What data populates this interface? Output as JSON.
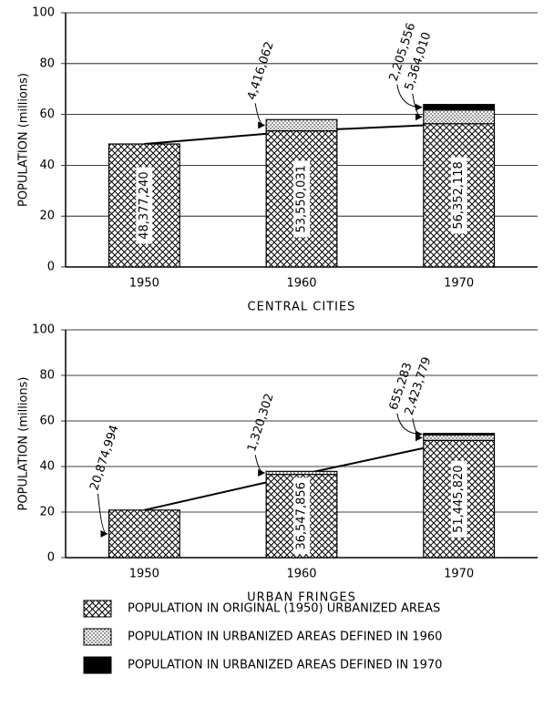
{
  "chart_data": [
    {
      "type": "bar",
      "stacked": true,
      "xlabel": "CENTRAL CITIES",
      "ylabel": "POPULATION (millions)",
      "categories": [
        "1950",
        "1960",
        "1970"
      ],
      "series": [
        {
          "name": "POPULATION IN ORIGINAL (1950) URBANIZED AREAS",
          "color": "#000000",
          "pattern": "crosshatch",
          "values": [
            48.37724,
            53.550031,
            56.352118
          ],
          "value_labels": [
            "48,377,240",
            "53,550,031",
            "56,352,118"
          ]
        },
        {
          "name": "POPULATION IN URBANIZED AREAS DEFINED IN 1960",
          "color": "#000000",
          "pattern": "dots",
          "values": [
            null,
            4.416062,
            5.36401
          ],
          "value_labels": [
            null,
            "4,416,062",
            "5,364,010"
          ]
        },
        {
          "name": "POPULATION IN URBANIZED AREAS DEFINED IN 1970",
          "color": "#000000",
          "pattern": "solid",
          "values": [
            null,
            null,
            2.205556
          ],
          "value_labels": [
            null,
            null,
            "2,205,556"
          ]
        }
      ],
      "ylim": [
        0,
        100
      ],
      "yticks": [
        0,
        20,
        40,
        60,
        80,
        100
      ],
      "grid": true
    },
    {
      "type": "bar",
      "stacked": true,
      "xlabel": "URBAN FRINGES",
      "ylabel": "POPULATION (millions)",
      "categories": [
        "1950",
        "1960",
        "1970"
      ],
      "series": [
        {
          "color": "#000000",
          "pattern": "crosshatch",
          "values": [
            20.874994,
            36.547856,
            51.44582
          ],
          "value_labels": [
            "20,874,994",
            "36,547,856",
            "51,445,820"
          ]
        },
        {
          "color": "#000000",
          "pattern": "dots",
          "values": [
            null,
            1.320302,
            2.423779
          ],
          "value_labels": [
            null,
            "1,320,302",
            "2,423,779"
          ]
        },
        {
          "color": "#000000",
          "pattern": "solid",
          "values": [
            null,
            null,
            0.655283
          ],
          "value_labels": [
            null,
            null,
            "655,283"
          ]
        }
      ],
      "ylim": [
        0,
        100
      ],
      "yticks": [
        0,
        20,
        40,
        60,
        80,
        100
      ],
      "grid": true
    }
  ]
}
